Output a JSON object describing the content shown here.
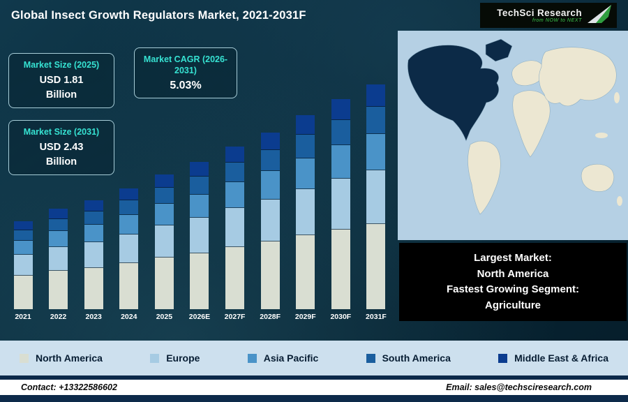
{
  "header": {
    "title": "Global Insect Growth Regulators Market, 2021-2031F",
    "logo": {
      "brand": "TechSci Research",
      "tagline": "from NOW to NEXT"
    }
  },
  "info_boxes": [
    {
      "heading": "Market Size (2025)",
      "value_line1": "USD 1.81",
      "value_line2": "Billion"
    },
    {
      "heading": "Market CAGR (2026-2031)",
      "value": "5.03%"
    },
    {
      "heading": "Market Size (2031)",
      "value_line1": "USD 2.43",
      "value_line2": "Billion"
    }
  ],
  "map_panel": {
    "colors": {
      "ocean": "#b5d0e4",
      "land": "#ece7d2",
      "highlight": "#0c2a47",
      "outline": "#8fb0c4"
    },
    "note_lines": [
      "Largest Market:",
      "North America",
      "Fastest Growing Segment:",
      "Agriculture"
    ]
  },
  "legend": {
    "items": [
      {
        "label": "North America",
        "color": "#d9ded2"
      },
      {
        "label": "Europe",
        "color": "#a6cbe3"
      },
      {
        "label": "Asia Pacific",
        "color": "#4a93c8"
      },
      {
        "label": "South America",
        "color": "#1a5e9e"
      },
      {
        "label": "Middle East & Africa",
        "color": "#0b3c8f"
      }
    ]
  },
  "footer": {
    "contact": "Contact: +13322586602",
    "email": "Email: sales@techsciresearch.com"
  },
  "chart_data": {
    "type": "bar",
    "stacked": true,
    "title": "Global Insect Growth Regulators Market, 2021-2031F",
    "unit": "USD Billion",
    "x": [
      "2021",
      "2022",
      "2023",
      "2024",
      "2025",
      "2026E",
      "2027F",
      "2028F",
      "2029F",
      "2030F",
      "2031F"
    ],
    "series": [
      {
        "name": "North America",
        "values": [
          0.57,
          0.6,
          0.62,
          0.65,
          0.69,
          0.72,
          0.76,
          0.8,
          0.84,
          0.88,
          0.92
        ]
      },
      {
        "name": "Europe",
        "values": [
          0.36,
          0.38,
          0.39,
          0.41,
          0.43,
          0.46,
          0.48,
          0.5,
          0.53,
          0.56,
          0.58
        ]
      },
      {
        "name": "Asia Pacific",
        "values": [
          0.24,
          0.25,
          0.26,
          0.28,
          0.29,
          0.3,
          0.32,
          0.34,
          0.35,
          0.37,
          0.39
        ]
      },
      {
        "name": "South America",
        "values": [
          0.18,
          0.19,
          0.2,
          0.21,
          0.22,
          0.23,
          0.24,
          0.25,
          0.27,
          0.28,
          0.29
        ]
      },
      {
        "name": "Middle East & Africa",
        "values": [
          0.15,
          0.16,
          0.17,
          0.17,
          0.18,
          0.19,
          0.2,
          0.21,
          0.22,
          0.23,
          0.24
        ]
      }
    ],
    "annotations": [
      "Market Size (2025): USD 1.81 Billion",
      "Market CAGR (2026-2031): 5.03%",
      "Market Size (2031): USD 2.43 Billion"
    ],
    "legend_position": "bottom",
    "grid": false,
    "visual_baseline": 0.9,
    "pixels_per_unit": 212
  }
}
